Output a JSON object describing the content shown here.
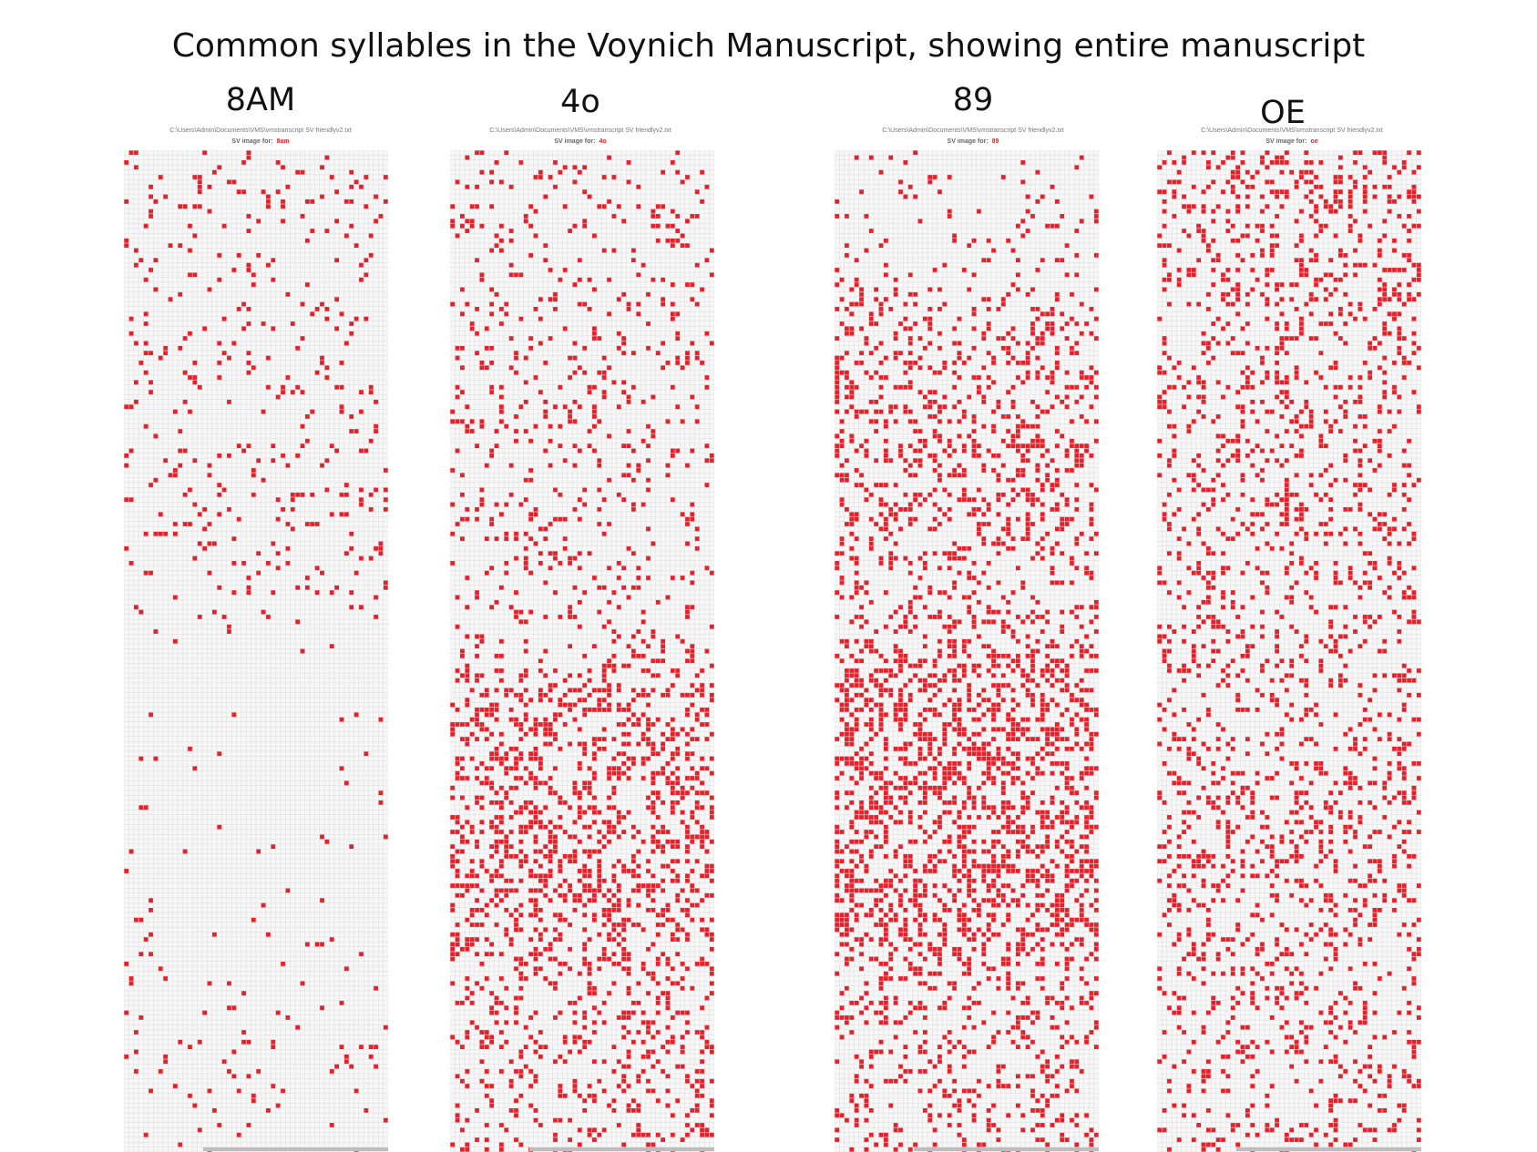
{
  "title": "Common syllables in the Voynich Manuscript, showing entire manuscript",
  "colors": {
    "mark": "#e8202a",
    "grid": "#dcdcdc",
    "gridBg": "#f7f7f7",
    "scrollbar": "#bdbdbd"
  },
  "chart_data": [
    {
      "type": "heatmap",
      "label": "8AM",
      "path": "C:\\Users\\Admin\\Documents\\VMS\\vmstranscript SV friendlyv2.txt",
      "caption": "SV image for:",
      "term": "8am",
      "density": [
        0.06,
        0.08,
        0.05,
        0.07,
        0.04,
        0.06,
        0.07,
        0.05,
        0.08,
        0.07,
        0.06,
        0.06,
        0.02,
        0.01,
        0.01,
        0.02,
        0.01,
        0.02,
        0.01,
        0.02,
        0.04,
        0.03,
        0.04,
        0.03,
        0.02
      ],
      "grid": {
        "rows": 205,
        "cols": 54
      }
    },
    {
      "type": "heatmap",
      "label": "4o",
      "path": "C:\\Users\\Admin\\Documents\\VMS\\vmstranscript SV friendlyv2.txt",
      "caption": "SV image for:",
      "term": "4o",
      "density": [
        0.1,
        0.09,
        0.1,
        0.11,
        0.1,
        0.11,
        0.12,
        0.11,
        0.1,
        0.11,
        0.12,
        0.1,
        0.05,
        0.26,
        0.3,
        0.32,
        0.28,
        0.3,
        0.33,
        0.3,
        0.24,
        0.18,
        0.17,
        0.15,
        0.15
      ],
      "grid": {
        "rows": 205,
        "cols": 54
      }
    },
    {
      "type": "heatmap",
      "label": "89",
      "path": "C:\\Users\\Admin\\Documents\\VMS\\vmstranscript SV friendlyv2.txt",
      "caption": "SV image for:",
      "term": "89",
      "density": [
        0.05,
        0.06,
        0.07,
        0.05,
        0.2,
        0.24,
        0.22,
        0.25,
        0.24,
        0.22,
        0.21,
        0.2,
        0.22,
        0.34,
        0.38,
        0.4,
        0.36,
        0.34,
        0.38,
        0.4,
        0.26,
        0.2,
        0.18,
        0.16,
        0.16
      ],
      "grid": {
        "rows": 205,
        "cols": 54
      }
    },
    {
      "type": "heatmap",
      "label": "OE",
      "path": "C:\\Users\\Admin\\Documents\\VMS\\vmstranscript SV friendlyv2.txt",
      "caption": "SV image for:",
      "term": "oe",
      "density": [
        0.24,
        0.22,
        0.2,
        0.22,
        0.18,
        0.17,
        0.18,
        0.17,
        0.16,
        0.18,
        0.17,
        0.15,
        0.16,
        0.18,
        0.19,
        0.18,
        0.2,
        0.22,
        0.21,
        0.19,
        0.18,
        0.18,
        0.15,
        0.14,
        0.14
      ],
      "grid": {
        "rows": 205,
        "cols": 54
      }
    }
  ]
}
